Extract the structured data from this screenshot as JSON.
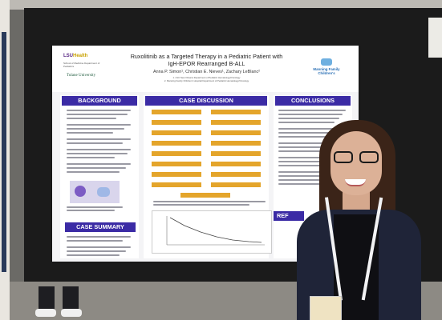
{
  "poster": {
    "title_line1": "Ruxolitinib as a Targeted Therapy in a Pediatric Patient with",
    "title_line2": "IgH-EPOR Rearranged B-ALL",
    "authors": "Anna P. Simon¹, Christian E. Nieves¹, Zachary LeBlanc²",
    "affiliation1": "1. LSU New Orleans Department of Pediatric Hematology/Oncology",
    "affiliation2": "2. Manning Family Children's Hospital Department of Pediatric Hematology/Oncology",
    "logo_lsu": "LSU",
    "logo_lsu_accent": "Health",
    "logo_lsu_sub": "School of Medicine Department of Pediatrics",
    "logo_tulane": "Tulane University",
    "logo_mfc": "Manning Family Children's",
    "sections": {
      "background": "BACKGROUND",
      "case_discussion": "CASE DISCUSSION",
      "conclusions": "CONCLUSIONS",
      "case_summary": "CASE SUMMARY",
      "references": "REF"
    }
  },
  "colors": {
    "section_header": "#3b2ba5",
    "flow_box": "#e4a52b",
    "board": "#1b1b1b"
  }
}
